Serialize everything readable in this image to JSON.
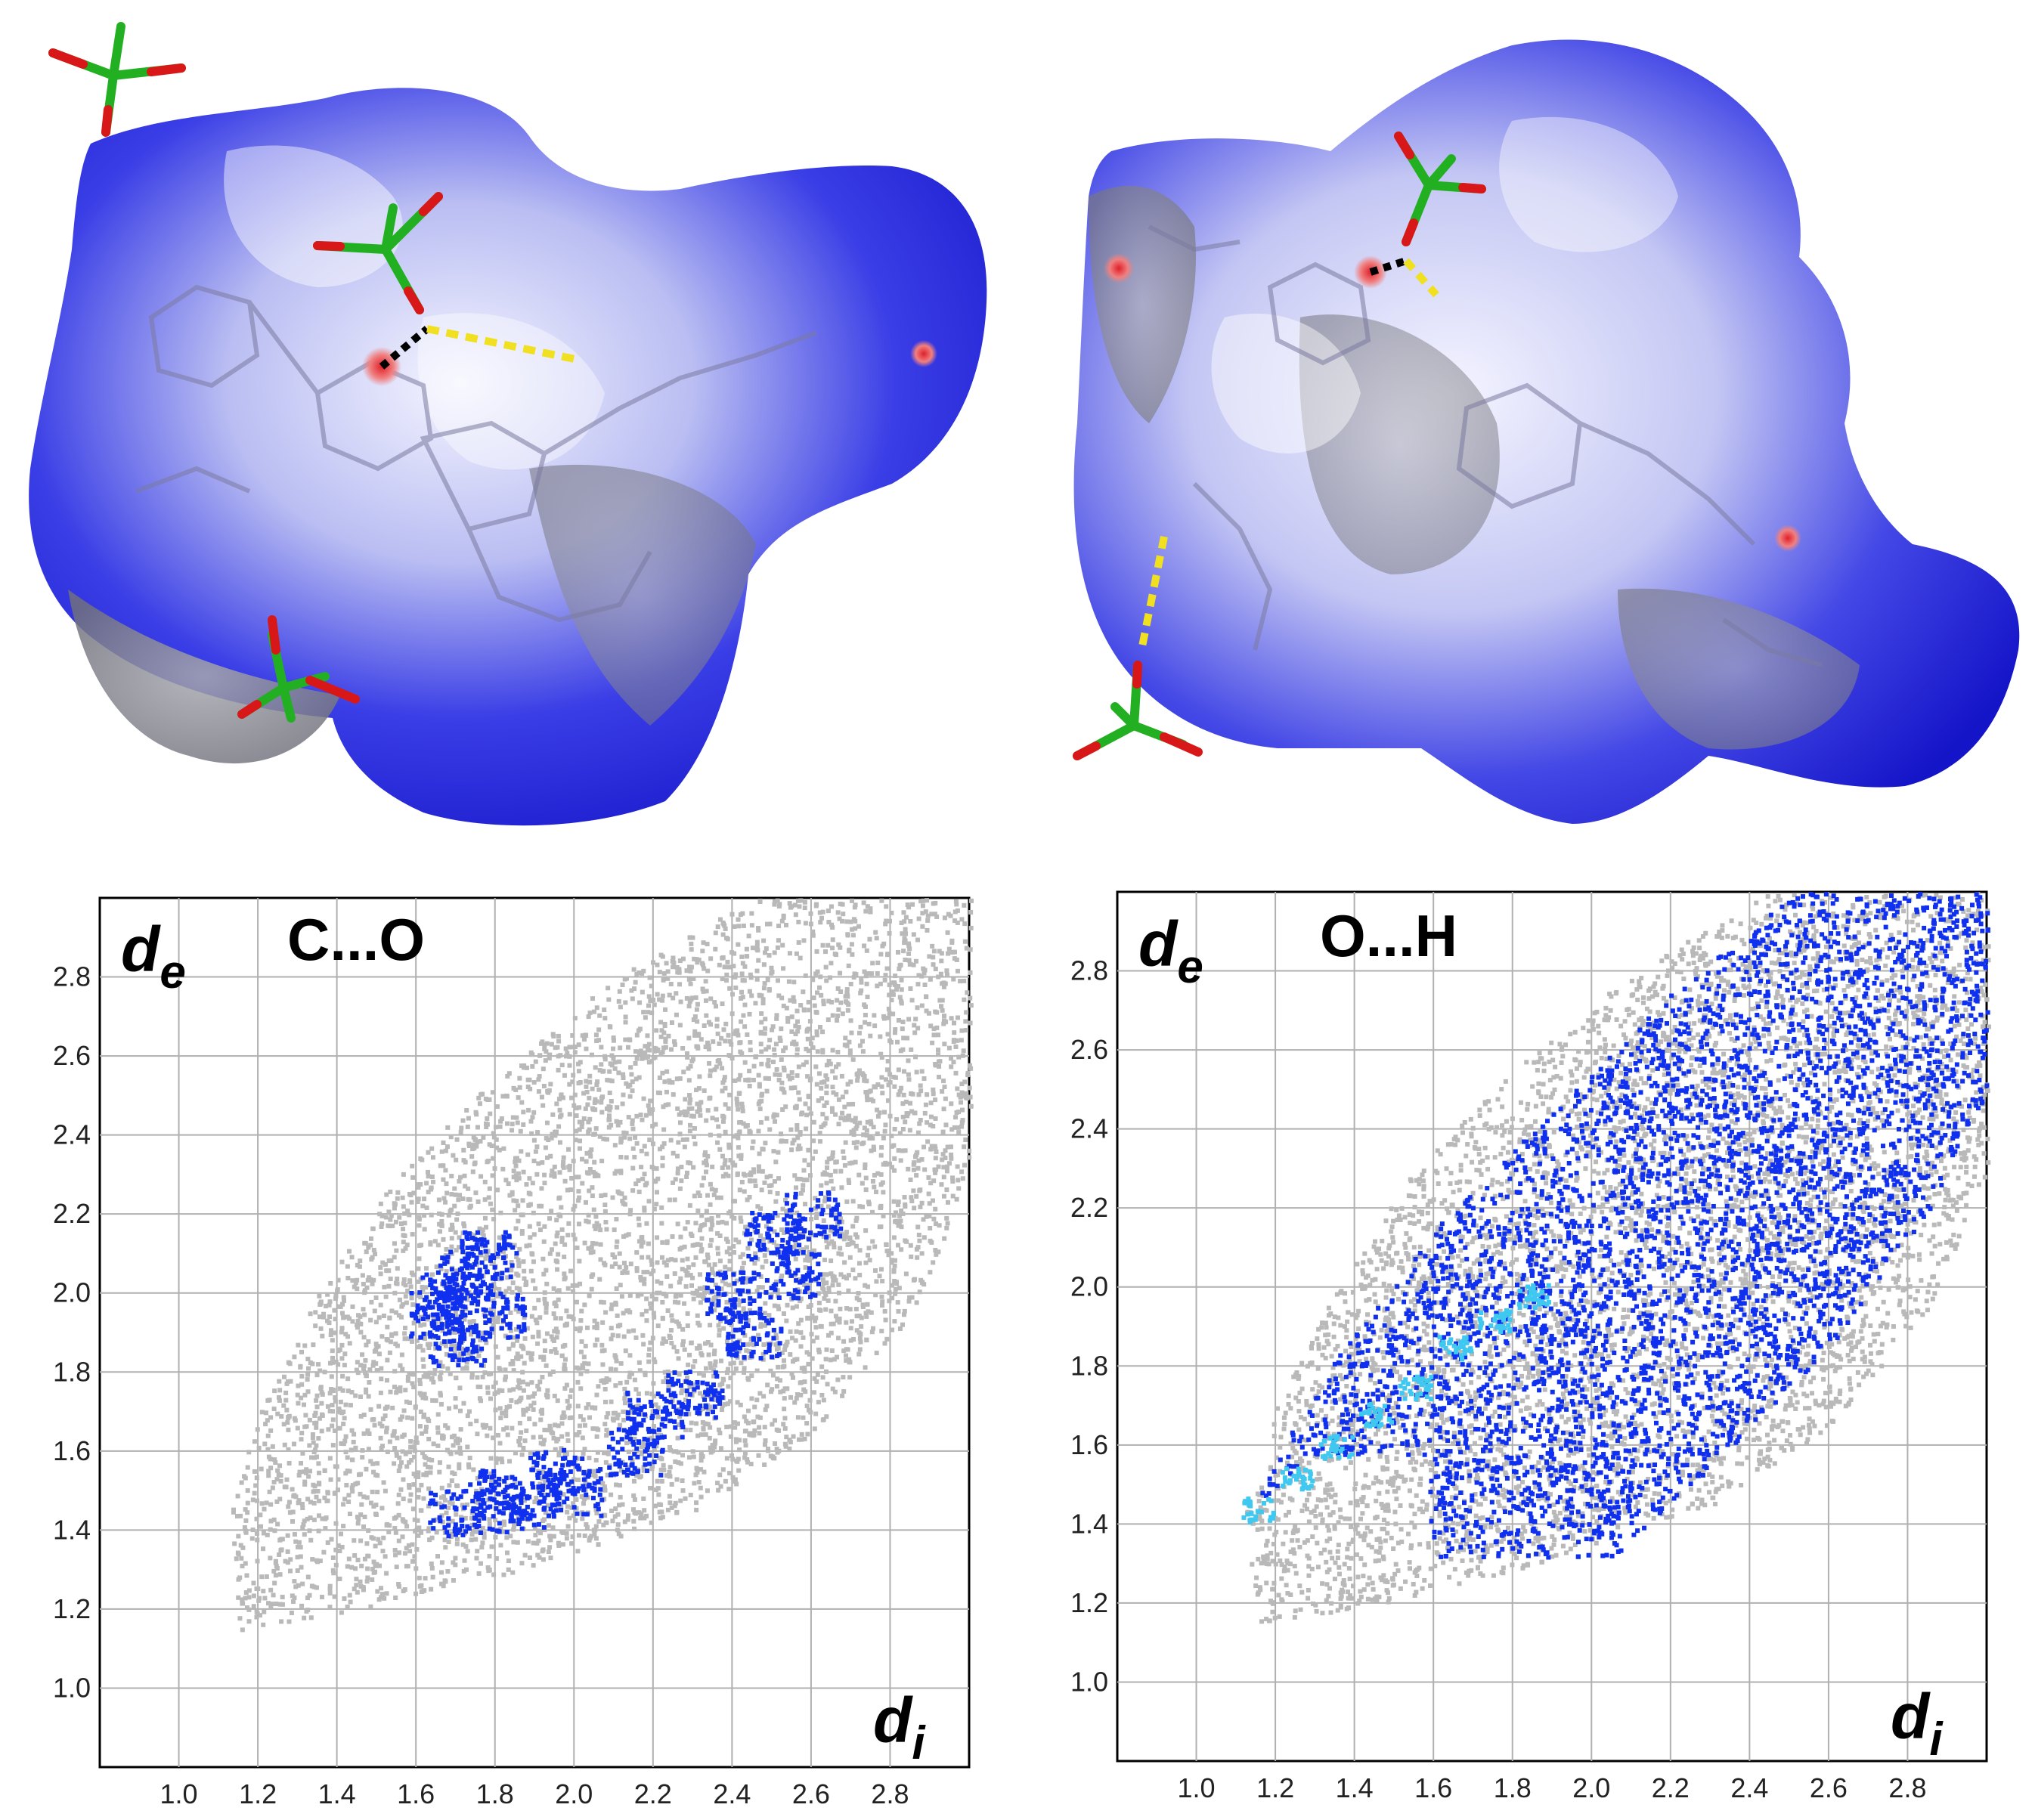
{
  "colors": {
    "surface_blue": "#1a1ad6",
    "surface_white": "#f2f2ff",
    "surface_grey": "#8a8a92",
    "contact_red": "#e0202a",
    "bond_green": "#22b022",
    "bond_red": "#d81818",
    "hbond_yellow": "#f0e020",
    "background_points": "#b9b9b9",
    "highlight_points": "#1030f0",
    "dense_points": "#3fc8f0",
    "grid": "#b0b0b0"
  },
  "surfaces": [
    {
      "name": "hirshfeld-surface-left",
      "type": "molecular-surface",
      "colormap": "dnorm"
    },
    {
      "name": "hirshfeld-surface-right",
      "type": "molecular-surface",
      "colormap": "dnorm"
    }
  ],
  "chart_data": [
    {
      "type": "scatter",
      "title": "C...O",
      "xlabel": "d",
      "xlabel_sub": "i",
      "ylabel": "d",
      "ylabel_sub": "e",
      "xlim": [
        0.8,
        3.0
      ],
      "ylim": [
        0.8,
        3.0
      ],
      "xticks": [
        "1.0",
        "1.2",
        "1.4",
        "1.6",
        "1.8",
        "2.0",
        "2.2",
        "2.4",
        "2.6",
        "2.8"
      ],
      "yticks": [
        "1.0",
        "1.2",
        "1.4",
        "1.6",
        "1.8",
        "2.0",
        "2.2",
        "2.4",
        "2.6",
        "2.8"
      ],
      "grid": true,
      "series": [
        {
          "role": "all-contacts",
          "color": "#b9b9b9",
          "region_outline": [
            [
              1.15,
              1.15
            ],
            [
              1.45,
              1.2
            ],
            [
              1.85,
              1.3
            ],
            [
              2.3,
              1.45
            ],
            [
              2.6,
              1.65
            ],
            [
              2.85,
              1.95
            ],
            [
              3.0,
              2.3
            ],
            [
              3.0,
              3.0
            ],
            [
              2.45,
              3.0
            ],
            [
              2.1,
              2.8
            ],
            [
              1.8,
              2.55
            ],
            [
              1.55,
              2.3
            ],
            [
              1.35,
              2.0
            ],
            [
              1.2,
              1.7
            ],
            [
              1.12,
              1.45
            ]
          ]
        },
        {
          "role": "C...O",
          "color": "#1030f0",
          "clusters": [
            {
              "points": [
                [
                  1.65,
                  1.95
                ],
                [
                  1.72,
                  2.05
                ],
                [
                  1.78,
                  2.1
                ],
                [
                  1.8,
                  1.95
                ],
                [
                  1.7,
                  1.88
                ],
                [
                  1.68,
                  2.0
                ]
              ]
            },
            {
              "points": [
                [
                  1.7,
                  1.45
                ],
                [
                  1.85,
                  1.46
                ],
                [
                  2.0,
                  1.5
                ],
                [
                  2.15,
                  1.6
                ],
                [
                  2.3,
                  1.75
                ],
                [
                  2.45,
                  1.9
                ],
                [
                  2.55,
                  2.05
                ],
                [
                  2.6,
                  2.2
                ],
                [
                  2.2,
                  1.7
                ],
                [
                  1.95,
                  1.55
                ],
                [
                  1.8,
                  1.5
                ],
                [
                  2.4,
                  2.0
                ],
                [
                  2.5,
                  2.15
                ]
              ]
            }
          ]
        }
      ]
    },
    {
      "type": "scatter",
      "title": "O...H",
      "xlabel": "d",
      "xlabel_sub": "i",
      "ylabel": "d",
      "ylabel_sub": "e",
      "xlim": [
        0.8,
        3.0
      ],
      "ylim": [
        0.8,
        3.0
      ],
      "xticks": [
        "1.0",
        "1.2",
        "1.4",
        "1.6",
        "1.8",
        "2.0",
        "2.2",
        "2.4",
        "2.6",
        "2.8"
      ],
      "yticks": [
        "1.0",
        "1.2",
        "1.4",
        "1.6",
        "1.8",
        "2.0",
        "2.2",
        "2.4",
        "2.6",
        "2.8"
      ],
      "grid": true,
      "series": [
        {
          "role": "all-contacts",
          "color": "#b9b9b9",
          "region_outline": [
            [
              1.15,
              1.15
            ],
            [
              1.45,
              1.2
            ],
            [
              1.85,
              1.3
            ],
            [
              2.3,
              1.45
            ],
            [
              2.6,
              1.65
            ],
            [
              2.85,
              1.95
            ],
            [
              3.0,
              2.3
            ],
            [
              3.0,
              3.0
            ],
            [
              2.45,
              3.0
            ],
            [
              2.1,
              2.8
            ],
            [
              1.8,
              2.55
            ],
            [
              1.55,
              2.3
            ],
            [
              1.35,
              2.0
            ],
            [
              1.2,
              1.7
            ],
            [
              1.12,
              1.45
            ]
          ]
        },
        {
          "role": "O...H",
          "color": "#1030f0",
          "region_outline": [
            [
              1.13,
              1.43
            ],
            [
              1.28,
              1.58
            ],
            [
              1.58,
              1.58
            ],
            [
              1.58,
              1.32
            ],
            [
              2.05,
              1.32
            ],
            [
              2.3,
              1.55
            ],
            [
              2.6,
              1.85
            ],
            [
              2.85,
              2.2
            ],
            [
              3.0,
              2.5
            ],
            [
              3.0,
              3.0
            ],
            [
              2.5,
              3.0
            ],
            [
              2.2,
              2.75
            ],
            [
              1.9,
              2.45
            ],
            [
              1.6,
              2.15
            ],
            [
              1.4,
              1.9
            ],
            [
              1.2,
              1.58
            ]
          ]
        },
        {
          "role": "O...H-dense",
          "color": "#3fc8f0",
          "points": [
            [
              1.15,
              1.44
            ],
            [
              1.25,
              1.52
            ],
            [
              1.35,
              1.6
            ],
            [
              1.45,
              1.68
            ],
            [
              1.55,
              1.75
            ],
            [
              1.65,
              1.85
            ],
            [
              1.75,
              1.92
            ],
            [
              1.85,
              1.98
            ]
          ]
        }
      ]
    }
  ]
}
